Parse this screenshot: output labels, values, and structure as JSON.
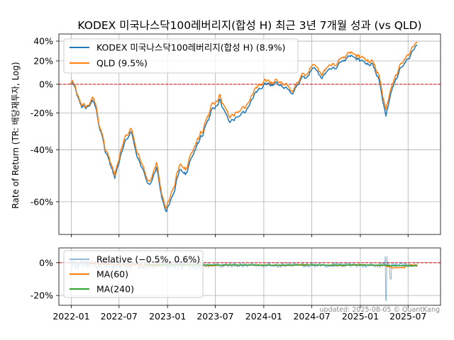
{
  "chart_data": [
    {
      "type": "line",
      "title": "KODEX 미국나스닥100레버리지(합성 H) 최근 3년 7개월 성과 (vs QLD)",
      "ylabel": "Rate of Return (TR: 배당재투자, Log)",
      "yscale": "log(1+r)",
      "xlim": [
        "2021-11-15",
        "2025-11-01"
      ],
      "ylim": [
        -69,
        48
      ],
      "yticks": [
        -60,
        -40,
        -20,
        0,
        20,
        40
      ],
      "ytick_labels": [
        "-60%",
        "-40%",
        "-20%",
        "0%",
        "20%",
        "40%"
      ],
      "grid": true,
      "legend": "top-left",
      "reference_line": 0,
      "series": [
        {
          "name": "KODEX 미국나스닥100레버리지(합성 H) (8.9%)",
          "color": "#1f77b4",
          "x": [
            "2021-12-27",
            "2022-01-05",
            "2022-01-25",
            "2022-02-10",
            "2022-03-05",
            "2022-03-28",
            "2022-04-20",
            "2022-05-10",
            "2022-06-15",
            "2022-07-15",
            "2022-08-15",
            "2022-09-10",
            "2022-10-05",
            "2022-10-25",
            "2022-11-20",
            "2022-12-10",
            "2022-12-28",
            "2023-01-20",
            "2023-02-15",
            "2023-03-10",
            "2023-04-10",
            "2023-05-15",
            "2023-06-15",
            "2023-07-20",
            "2023-08-20",
            "2023-09-20",
            "2023-10-25",
            "2023-11-20",
            "2023-12-20",
            "2024-01-20",
            "2024-02-20",
            "2024-03-20",
            "2024-04-20",
            "2024-05-20",
            "2024-06-20",
            "2024-07-10",
            "2024-08-05",
            "2024-08-30",
            "2024-09-30",
            "2024-10-30",
            "2024-11-30",
            "2024-12-20",
            "2025-01-20",
            "2025-02-15",
            "2025-03-10",
            "2025-04-08",
            "2025-04-30",
            "2025-05-30",
            "2025-06-30",
            "2025-07-20",
            "2025-08-05"
          ],
          "values": [
            0,
            2,
            -9,
            -17,
            -15,
            -13,
            -29,
            -41,
            -52,
            -40,
            -30,
            -44,
            -51,
            -55,
            -48,
            -59,
            -63,
            -58,
            -49,
            -50,
            -42,
            -32,
            -20,
            -12,
            -25,
            -23,
            -19,
            -10,
            -3,
            0,
            1,
            -2,
            -5,
            4,
            8,
            15,
            5,
            10,
            14,
            20,
            24,
            22,
            16,
            18,
            4,
            -22,
            -5,
            10,
            22,
            30,
            38
          ]
        },
        {
          "name": "QLD (9.5%)",
          "color": "#ff7f0e",
          "x": [
            "2021-12-27",
            "2022-01-05",
            "2022-01-25",
            "2022-02-10",
            "2022-03-05",
            "2022-03-28",
            "2022-04-20",
            "2022-05-10",
            "2022-06-15",
            "2022-07-15",
            "2022-08-15",
            "2022-09-10",
            "2022-10-05",
            "2022-10-25",
            "2022-11-20",
            "2022-12-10",
            "2022-12-28",
            "2023-01-20",
            "2023-02-15",
            "2023-03-10",
            "2023-04-10",
            "2023-05-15",
            "2023-06-15",
            "2023-07-20",
            "2023-08-20",
            "2023-09-20",
            "2023-10-25",
            "2023-11-20",
            "2023-12-20",
            "2024-01-20",
            "2024-02-20",
            "2024-03-20",
            "2024-04-20",
            "2024-05-20",
            "2024-06-20",
            "2024-07-10",
            "2024-08-05",
            "2024-08-30",
            "2024-09-30",
            "2024-10-30",
            "2024-11-30",
            "2024-12-20",
            "2025-01-20",
            "2025-02-15",
            "2025-03-10",
            "2025-04-08",
            "2025-04-30",
            "2025-05-30",
            "2025-06-30",
            "2025-07-20",
            "2025-08-05"
          ],
          "values": [
            0,
            3,
            -8,
            -16,
            -14,
            -11,
            -28,
            -40,
            -51,
            -38,
            -28,
            -42,
            -50,
            -54,
            -46,
            -58,
            -62,
            -56,
            -47,
            -48,
            -40,
            -30,
            -17,
            -9,
            -22,
            -20,
            -16,
            -7,
            0,
            2,
            3,
            1,
            -3,
            6,
            11,
            18,
            8,
            13,
            17,
            23,
            27,
            25,
            19,
            21,
            7,
            -18,
            -2,
            13,
            26,
            34,
            41
          ]
        }
      ]
    },
    {
      "type": "line",
      "ylim": [
        -26,
        9
      ],
      "yticks": [
        -20,
        0
      ],
      "ytick_labels": [
        "-20%",
        "0%"
      ],
      "xticks": [
        "2022-01-01",
        "2022-07-01",
        "2023-01-01",
        "2023-07-01",
        "2024-01-01",
        "2024-07-01",
        "2025-01-01",
        "2025-07-01"
      ],
      "xtick_labels": [
        "2022-01",
        "2022-07",
        "2023-01",
        "2023-07",
        "2024-01",
        "2024-07",
        "2025-01",
        "2025-07"
      ],
      "grid": true,
      "legend": "top-left",
      "reference_line": 0,
      "series": [
        {
          "name": "Relative (−0.5%, 0.6%)",
          "color": "#1f77b4"
        },
        {
          "name": "MA(60)",
          "color": "#ff7f0e"
        },
        {
          "name": "MA(240)",
          "color": "#2ca02c"
        }
      ]
    }
  ],
  "footer": {
    "text": "updated: 2025-08-05 © QuantKang"
  }
}
